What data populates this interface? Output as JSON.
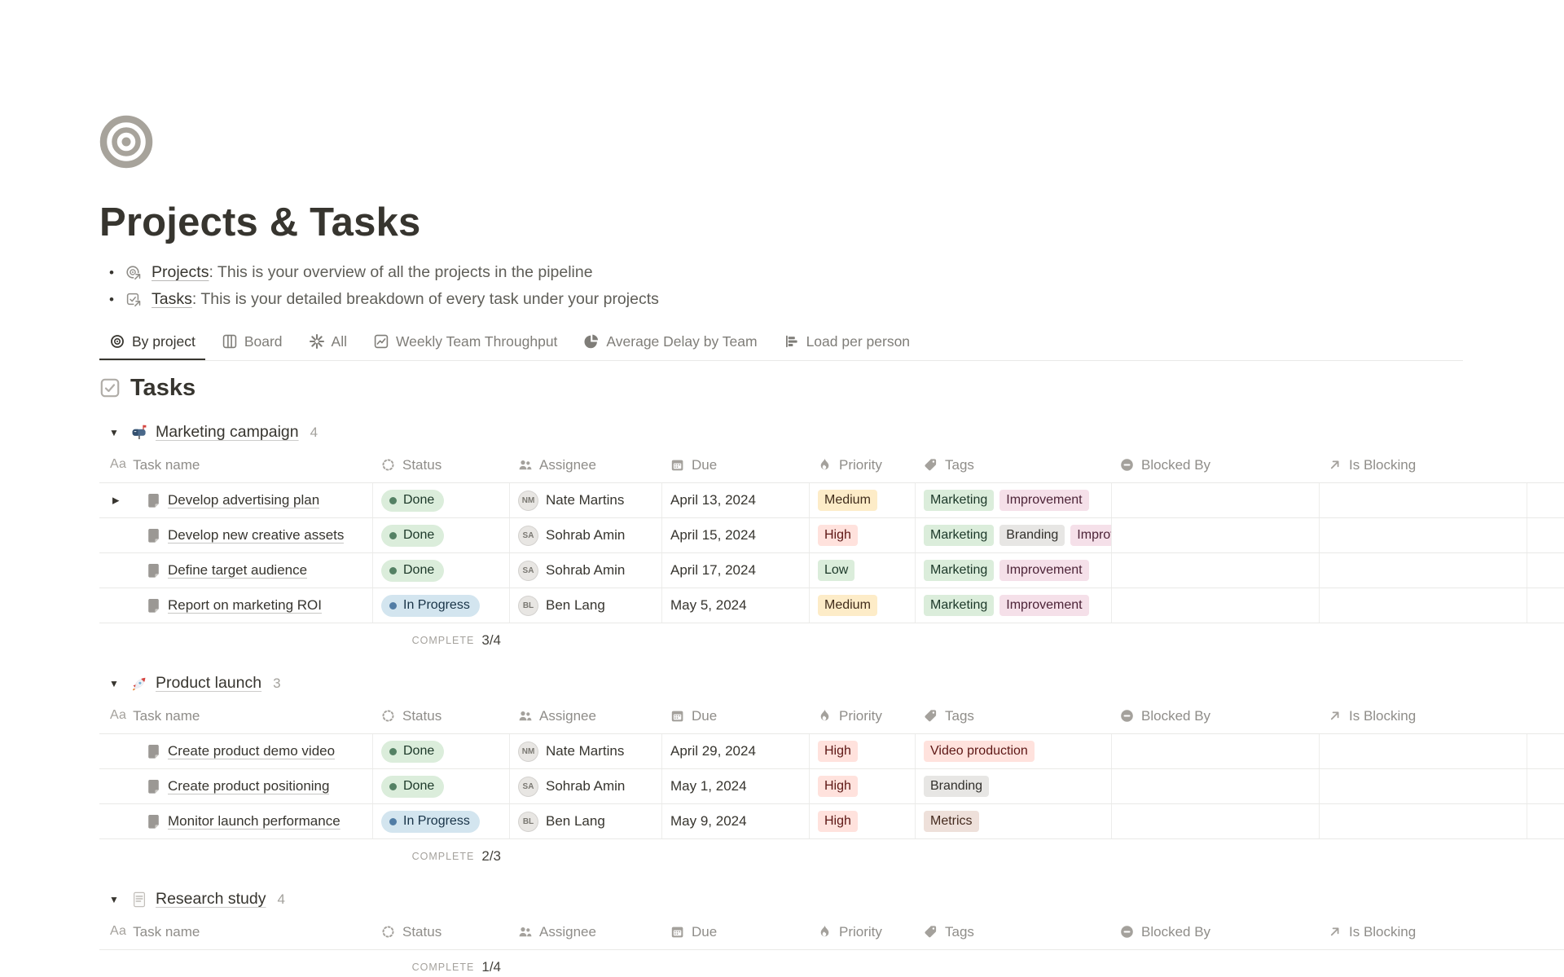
{
  "page": {
    "icon": "target-icon",
    "title": "Projects & Tasks",
    "bullets": [
      {
        "icon": "target-link-icon",
        "link": "Projects",
        "rest": ": This is your overview of all the projects in the pipeline"
      },
      {
        "icon": "checkbox-link-icon",
        "link": "Tasks",
        "rest": ": This is your detailed breakdown of every task under your projects"
      }
    ],
    "tabs": [
      {
        "label": "By project",
        "icon": "target-icon",
        "active": true
      },
      {
        "label": "Board",
        "icon": "board-icon",
        "active": false
      },
      {
        "label": "All",
        "icon": "asterisk-icon",
        "active": false
      },
      {
        "label": "Weekly Team Throughput",
        "icon": "line-chart-icon",
        "active": false
      },
      {
        "label": "Average Delay by Team",
        "icon": "pie-chart-icon",
        "active": false
      },
      {
        "label": "Load per person",
        "icon": "bar-chart-icon",
        "active": false
      }
    ],
    "section_title": "Tasks",
    "section_icon": "checkbox-icon"
  },
  "table": {
    "columns": [
      {
        "label": "Task name",
        "icon": "text-icon"
      },
      {
        "label": "Status",
        "icon": "status-icon"
      },
      {
        "label": "Assignee",
        "icon": "people-icon"
      },
      {
        "label": "Due",
        "icon": "calendar-icon"
      },
      {
        "label": "Priority",
        "icon": "flame-icon"
      },
      {
        "label": "Tags",
        "icon": "tag-icon"
      },
      {
        "label": "Blocked By",
        "icon": "blocked-icon"
      },
      {
        "label": "Is Blocking",
        "icon": "arrow-ne-icon"
      }
    ],
    "complete_label": "COMPLETE"
  },
  "status_colors": {
    "Done": "green",
    "In Progress": "blue"
  },
  "priority_colors": {
    "High": "red",
    "Medium": "yellow",
    "Low": "green"
  },
  "palette": {
    "green": {
      "bg": "#dbeddb",
      "text": "#1c3829",
      "dot": "#548164"
    },
    "blue": {
      "bg": "#d3e5ef",
      "text": "#183347",
      "dot": "#527da5"
    },
    "yellow": {
      "bg": "#fdecc8",
      "text": "#402c1b",
      "dot": "#c29343"
    },
    "red": {
      "bg": "#ffe2dd",
      "text": "#5d1715",
      "dot": "#c4554d"
    },
    "gray": {
      "bg": "#e7e6e4",
      "text": "#32302c",
      "dot": "#9b9a97"
    },
    "pink": {
      "bg": "#f5e0e9",
      "text": "#4c2337",
      "dot": "#c14c8a"
    },
    "brown": {
      "bg": "#eee0da",
      "text": "#442a1e",
      "dot": "#9f6b53"
    }
  },
  "groups": [
    {
      "icon": "mailbox-icon",
      "name": "Marketing campaign",
      "count": "4",
      "complete": "3/4",
      "rows": [
        {
          "task": "Develop advertising plan",
          "status": "Done",
          "assignee": "Nate Martins",
          "initials": "NM",
          "due": "April 13, 2024",
          "priority": "Medium",
          "expander": true,
          "tags": [
            {
              "label": "Marketing",
              "color": "green"
            },
            {
              "label": "Improvement",
              "color": "pink"
            }
          ]
        },
        {
          "task": "Develop new creative assets",
          "status": "Done",
          "assignee": "Sohrab Amin",
          "initials": "SA",
          "due": "April 15, 2024",
          "priority": "High",
          "expander": false,
          "tags": [
            {
              "label": "Marketing",
              "color": "green"
            },
            {
              "label": "Branding",
              "color": "gray"
            },
            {
              "label": "Improvement",
              "color": "pink"
            }
          ]
        },
        {
          "task": "Define target audience",
          "status": "Done",
          "assignee": "Sohrab Amin",
          "initials": "SA",
          "due": "April 17, 2024",
          "priority": "Low",
          "expander": false,
          "tags": [
            {
              "label": "Marketing",
              "color": "green"
            },
            {
              "label": "Improvement",
              "color": "pink"
            }
          ]
        },
        {
          "task": "Report on marketing ROI",
          "status": "In Progress",
          "assignee": "Ben Lang",
          "initials": "BL",
          "due": "May 5, 2024",
          "priority": "Medium",
          "expander": false,
          "tags": [
            {
              "label": "Marketing",
              "color": "green"
            },
            {
              "label": "Improvement",
              "color": "pink"
            }
          ]
        }
      ]
    },
    {
      "icon": "rocket-icon",
      "name": "Product launch",
      "count": "3",
      "complete": "2/3",
      "rows": [
        {
          "task": "Create product demo video",
          "status": "Done",
          "assignee": "Nate Martins",
          "initials": "NM",
          "due": "April 29, 2024",
          "priority": "High",
          "expander": false,
          "tags": [
            {
              "label": "Video production",
              "color": "red"
            }
          ]
        },
        {
          "task": "Create product positioning",
          "status": "Done",
          "assignee": "Sohrab Amin",
          "initials": "SA",
          "due": "May 1, 2024",
          "priority": "High",
          "expander": false,
          "tags": [
            {
              "label": "Branding",
              "color": "gray"
            }
          ]
        },
        {
          "task": "Monitor launch performance",
          "status": "In Progress",
          "assignee": "Ben Lang",
          "initials": "BL",
          "due": "May 9, 2024",
          "priority": "High",
          "expander": false,
          "tags": [
            {
              "label": "Metrics",
              "color": "brown"
            }
          ]
        }
      ]
    },
    {
      "icon": "document-icon",
      "name": "Research study",
      "count": "4",
      "complete": "1/4",
      "rows": []
    }
  ]
}
